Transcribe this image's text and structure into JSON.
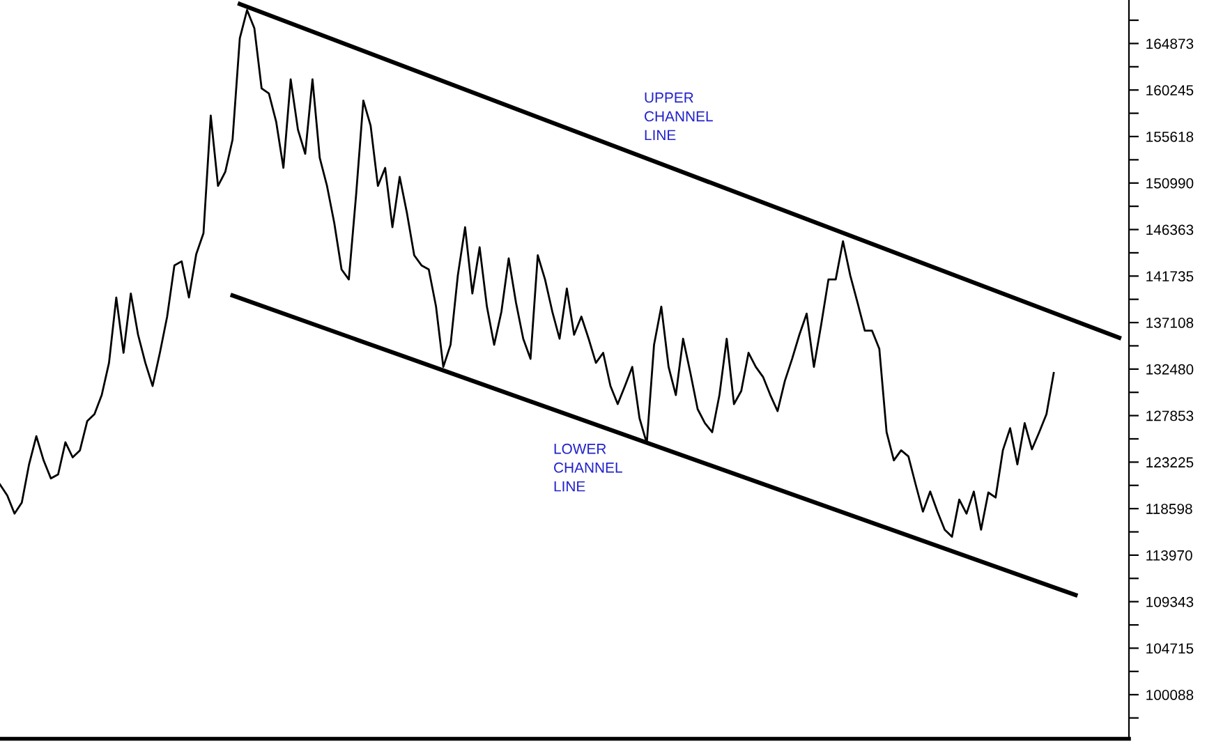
{
  "chart_data": {
    "type": "line",
    "categories": [
      null,
      null,
      null,
      null,
      null,
      null,
      null,
      null,
      null,
      null,
      null,
      null,
      null,
      null,
      null,
      null,
      null,
      null,
      null,
      null,
      null,
      null,
      null,
      null,
      null,
      null,
      null,
      null,
      null,
      null,
      null,
      null,
      null,
      null,
      null,
      null,
      null,
      null,
      null,
      null,
      null,
      null,
      null,
      null,
      null,
      null,
      null,
      null,
      null,
      null,
      null,
      null,
      null,
      null,
      null,
      null,
      null,
      null,
      null,
      null,
      null,
      null,
      null,
      null,
      null,
      null,
      null,
      null,
      null,
      null,
      null,
      null,
      null,
      null,
      null,
      null,
      null,
      null,
      null,
      null,
      null,
      null,
      null,
      null,
      null,
      null,
      null,
      null,
      null,
      null,
      null,
      null,
      null,
      null,
      null,
      null,
      null,
      null,
      null,
      null,
      null,
      null,
      null,
      null,
      null,
      null,
      null,
      null,
      null,
      null,
      null,
      null,
      null,
      null,
      null,
      null,
      null,
      null,
      null,
      null,
      null,
      null,
      null,
      null,
      null,
      null,
      null,
      null,
      null,
      null,
      null,
      null,
      null,
      null,
      null,
      null,
      null,
      null,
      null,
      null,
      null,
      null,
      null,
      null,
      null,
      null,
      null,
      null,
      null,
      null,
      null,
      null,
      null,
      null,
      null
    ],
    "series": [
      {
        "color": "#000000",
        "values": [
          121000,
          119900,
          118100,
          119200,
          123000,
          125800,
          123400,
          121600,
          122000,
          125200,
          123700,
          124400,
          127300,
          128000,
          129900,
          133100,
          139600,
          134100,
          140000,
          135900,
          133100,
          130800,
          134100,
          137700,
          142800,
          143200,
          139600,
          143900,
          146000,
          157700,
          150700,
          152100,
          155300,
          165400,
          168200,
          166400,
          160400,
          159900,
          157100,
          152500,
          161300,
          156300,
          153900,
          161300,
          153500,
          150700,
          147000,
          142400,
          141400,
          149800,
          159200,
          156700,
          150700,
          152500,
          146600,
          151600,
          148000,
          143800,
          142800,
          142400,
          138700,
          132700,
          134900,
          141800,
          146600,
          140000,
          144600,
          138700,
          134900,
          138200,
          143500,
          139100,
          135500,
          133500,
          143800,
          141400,
          138200,
          135500,
          140500,
          135900,
          137700,
          135500,
          133100,
          134100,
          130800,
          129000,
          130800,
          132700,
          127600,
          125100,
          134900,
          138700,
          132700,
          129900,
          135500,
          132100,
          128500,
          127100,
          126200,
          129900,
          135500,
          129000,
          130300,
          134100,
          132700,
          131700,
          129900,
          128300,
          131300,
          133500,
          135900,
          138000,
          132700,
          136900,
          141400,
          141400,
          145200,
          141800,
          139100,
          136300,
          136300,
          134500,
          126200,
          123400,
          124400,
          123800,
          121000,
          118300,
          120300,
          118300,
          116500,
          115800,
          119500,
          118100,
          120300,
          116500,
          120200,
          119700,
          124400,
          126600,
          123000,
          127100,
          124500,
          126200,
          128000,
          132100,
          null,
          null,
          null,
          null,
          null,
          null,
          null,
          null,
          null
        ]
      },
      {
        "type": "line",
        "color": "#000000",
        "values": [
          null,
          null,
          null,
          null,
          null,
          null,
          null,
          null,
          null,
          null,
          null,
          null,
          null,
          null,
          null,
          null,
          null,
          null,
          null,
          null,
          null,
          null,
          null,
          null,
          null,
          null,
          null,
          null,
          null,
          null,
          null,
          null,
          null,
          168800,
          null,
          null,
          null,
          null,
          null,
          null,
          null,
          null,
          null,
          null,
          null,
          null,
          null,
          null,
          null,
          null,
          null,
          null,
          null,
          null,
          null,
          null,
          null,
          null,
          null,
          null,
          null,
          null,
          null,
          null,
          null,
          null,
          null,
          null,
          null,
          null,
          null,
          null,
          null,
          null,
          null,
          null,
          null,
          null,
          null,
          null,
          null,
          null,
          null,
          null,
          null,
          null,
          null,
          null,
          null,
          null,
          null,
          null,
          null,
          null,
          null,
          null,
          null,
          null,
          null,
          null,
          null,
          null,
          null,
          null,
          null,
          null,
          null,
          null,
          null,
          null,
          null,
          null,
          null,
          null,
          null,
          null,
          null,
          null,
          null,
          null,
          null,
          null,
          null,
          null,
          null,
          null,
          null,
          null,
          null,
          null,
          null,
          null,
          null,
          null,
          null,
          null,
          null,
          null,
          null,
          null,
          null,
          null,
          null,
          null,
          null,
          null,
          null,
          null,
          null,
          null,
          null,
          null,
          null,
          null,
          135600
        ]
      },
      {
        "type": "line",
        "color": "#000000",
        "values": [
          null,
          null,
          null,
          null,
          null,
          null,
          null,
          null,
          null,
          null,
          null,
          null,
          null,
          null,
          null,
          null,
          null,
          null,
          null,
          null,
          null,
          null,
          null,
          null,
          null,
          null,
          null,
          null,
          null,
          null,
          null,
          null,
          139800,
          null,
          null,
          null,
          null,
          null,
          null,
          null,
          null,
          null,
          null,
          null,
          null,
          null,
          null,
          null,
          null,
          null,
          null,
          null,
          null,
          null,
          null,
          null,
          null,
          null,
          null,
          null,
          null,
          null,
          null,
          null,
          null,
          null,
          null,
          null,
          null,
          null,
          null,
          null,
          null,
          null,
          null,
          null,
          null,
          null,
          null,
          null,
          null,
          null,
          null,
          null,
          null,
          null,
          null,
          null,
          null,
          null,
          null,
          null,
          null,
          null,
          null,
          null,
          null,
          null,
          null,
          null,
          null,
          null,
          null,
          null,
          null,
          null,
          null,
          null,
          null,
          null,
          null,
          null,
          null,
          null,
          null,
          null,
          null,
          null,
          null,
          null,
          null,
          null,
          null,
          null,
          null,
          null,
          null,
          null,
          null,
          null,
          null,
          null,
          null,
          null,
          null,
          null,
          null,
          null,
          null,
          null,
          null,
          null,
          null,
          null,
          null,
          null,
          null,
          null,
          110000,
          null,
          null,
          null,
          null,
          null,
          null
        ]
      }
    ],
    "annotations": [
      "UPPER\nCHANNEL\nLINE",
      "LOWER\nCHANNEL\nLINE"
    ],
    "ylim": [
      95700,
      169200
    ],
    "yticks": [
      {
        "value": 167187,
        "label": null
      },
      164873,
      {
        "value": 162559,
        "label": null
      },
      160245,
      {
        "value": 157932,
        "label": null
      },
      155618,
      {
        "value": 153304,
        "label": null
      },
      150990,
      {
        "value": 148677,
        "label": null
      },
      146363,
      {
        "value": 144049,
        "label": null
      },
      141735,
      {
        "value": 139422,
        "label": null
      },
      137108,
      {
        "value": 134794,
        "label": null
      },
      132480,
      {
        "value": 130166,
        "label": null
      },
      127853,
      {
        "value": 125539,
        "label": null
      },
      123225,
      {
        "value": 120912,
        "label": null
      },
      118598,
      {
        "value": 116284,
        "label": null
      },
      113970,
      {
        "value": 111657,
        "label": null
      },
      109343,
      {
        "value": 107029,
        "label": null
      },
      104715,
      {
        "value": 102402,
        "label": null
      },
      100088,
      {
        "value": 97774,
        "label": null
      }
    ],
    "tick_labels": "y",
    "grid": false,
    "legend": false
  }
}
